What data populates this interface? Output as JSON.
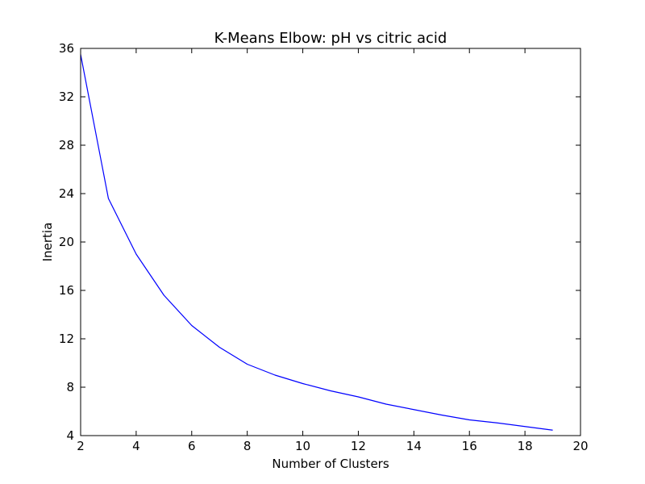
{
  "chart_data": {
    "type": "line",
    "title": "K-Means Elbow: pH vs citric acid",
    "xlabel": "Number of Clusters",
    "ylabel": "Inertia",
    "xlim": [
      2,
      20
    ],
    "ylim": [
      4,
      36
    ],
    "xticks": [
      2,
      4,
      6,
      8,
      10,
      12,
      14,
      16,
      18,
      20
    ],
    "yticks": [
      4,
      8,
      12,
      16,
      20,
      24,
      28,
      32,
      36
    ],
    "grid": false,
    "series": [
      {
        "color": "#0000ff",
        "x": [
          2,
          3,
          4,
          5,
          6,
          7,
          8,
          9,
          10,
          11,
          12,
          13,
          14,
          15,
          16,
          17,
          18,
          19
        ],
        "y": [
          35.5,
          23.6,
          19.0,
          15.6,
          13.1,
          11.3,
          9.9,
          9.0,
          8.3,
          7.7,
          7.2,
          6.6,
          6.15,
          5.7,
          5.3,
          5.05,
          4.75,
          4.45
        ]
      }
    ]
  }
}
